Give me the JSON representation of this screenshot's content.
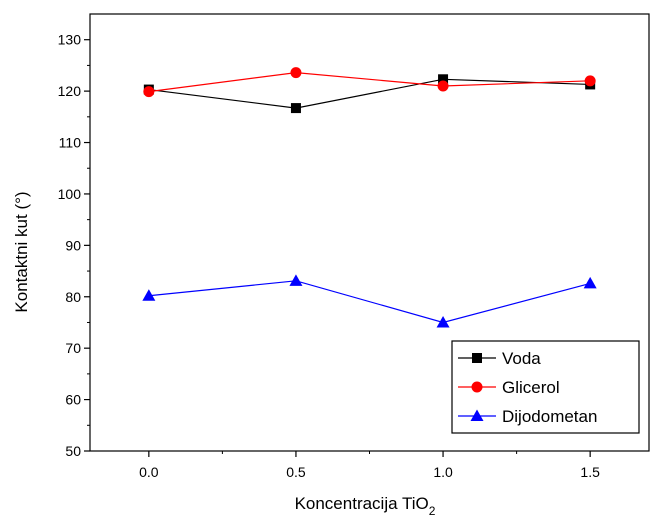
{
  "chart_data": {
    "type": "line",
    "title": "",
    "xlabel": "Koncentracija TiO",
    "xlabel_subscript": "2",
    "ylabel": "Kontaktni kut (°)",
    "xlim": [
      -0.2,
      1.7
    ],
    "ylim": [
      50,
      135
    ],
    "x_ticks": [
      0.0,
      0.5,
      1.0,
      1.5
    ],
    "x_tick_labels": [
      "0.0",
      "0.5",
      "1.0",
      "1.5"
    ],
    "y_ticks": [
      50,
      60,
      70,
      80,
      90,
      100,
      110,
      120,
      130
    ],
    "y_tick_labels": [
      "50",
      "60",
      "70",
      "80",
      "90",
      "100",
      "110",
      "120",
      "130"
    ],
    "grid": false,
    "legend_position": "bottom-right",
    "x": [
      0.0,
      0.5,
      1.0,
      1.5
    ],
    "series": [
      {
        "name": "Voda",
        "values": [
          120.3,
          116.7,
          122.3,
          121.3
        ],
        "color": "#000000",
        "marker": "square"
      },
      {
        "name": "Glicerol",
        "values": [
          119.9,
          123.6,
          121.0,
          122.0
        ],
        "color": "#ff0000",
        "marker": "circle"
      },
      {
        "name": "Dijodometan",
        "values": [
          80.2,
          83.1,
          75.0,
          82.6
        ],
        "color": "#0000ff",
        "marker": "triangle"
      }
    ]
  }
}
